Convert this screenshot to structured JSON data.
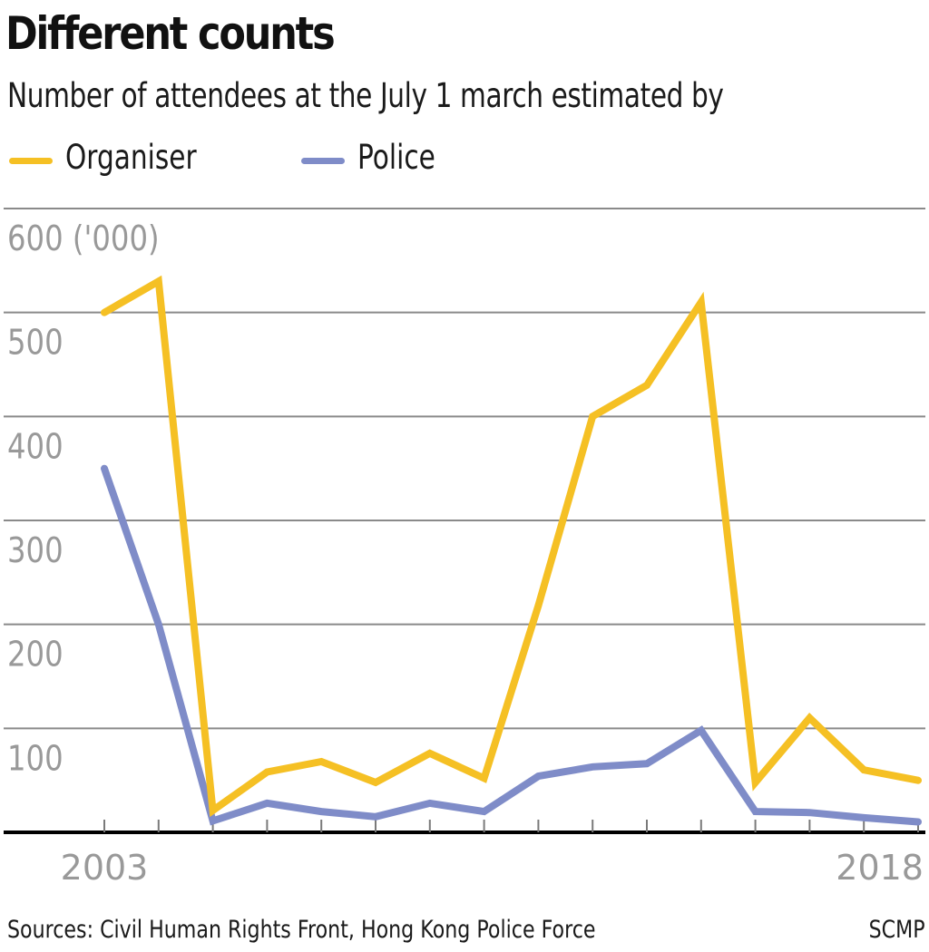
{
  "header": {
    "title": "Different counts",
    "subtitle": "Number of attendees at the July 1 march estimated by"
  },
  "legend": [
    {
      "name": "Organiser",
      "color": "#F5C024"
    },
    {
      "name": "Police",
      "color": "#7F8CC8"
    }
  ],
  "footer": {
    "sources": "Sources: Civil Human Rights Front, Hong Kong Police Force",
    "credit": "SCMP"
  },
  "chart_data": {
    "type": "line",
    "title": "Different counts",
    "subtitle": "Number of attendees at the July 1 march estimated by",
    "xlabel": "",
    "ylabel": "('000)",
    "x": [
      2003,
      2004,
      2005,
      2006,
      2007,
      2008,
      2009,
      2010,
      2011,
      2012,
      2013,
      2014,
      2015,
      2016,
      2017,
      2018
    ],
    "x_tick_labels": [
      "2003",
      "2018"
    ],
    "y_tick_labels": [
      "100",
      "200",
      "300",
      "400",
      "500",
      "600 ('000)"
    ],
    "y_ticks": [
      0,
      100,
      200,
      300,
      400,
      500,
      600
    ],
    "ylim": [
      0,
      600
    ],
    "grid": true,
    "legend_position": "top-left",
    "series": [
      {
        "name": "Organiser",
        "color": "#F5C024",
        "values": [
          500,
          530,
          21,
          58,
          68,
          48,
          76,
          52,
          218,
          400,
          430,
          510,
          48,
          110,
          60,
          50
        ]
      },
      {
        "name": "Police",
        "color": "#7F8CC8",
        "values": [
          350,
          200,
          11,
          28,
          20,
          15,
          28,
          20,
          54,
          63,
          66,
          98,
          20,
          19,
          14,
          10
        ]
      }
    ]
  }
}
